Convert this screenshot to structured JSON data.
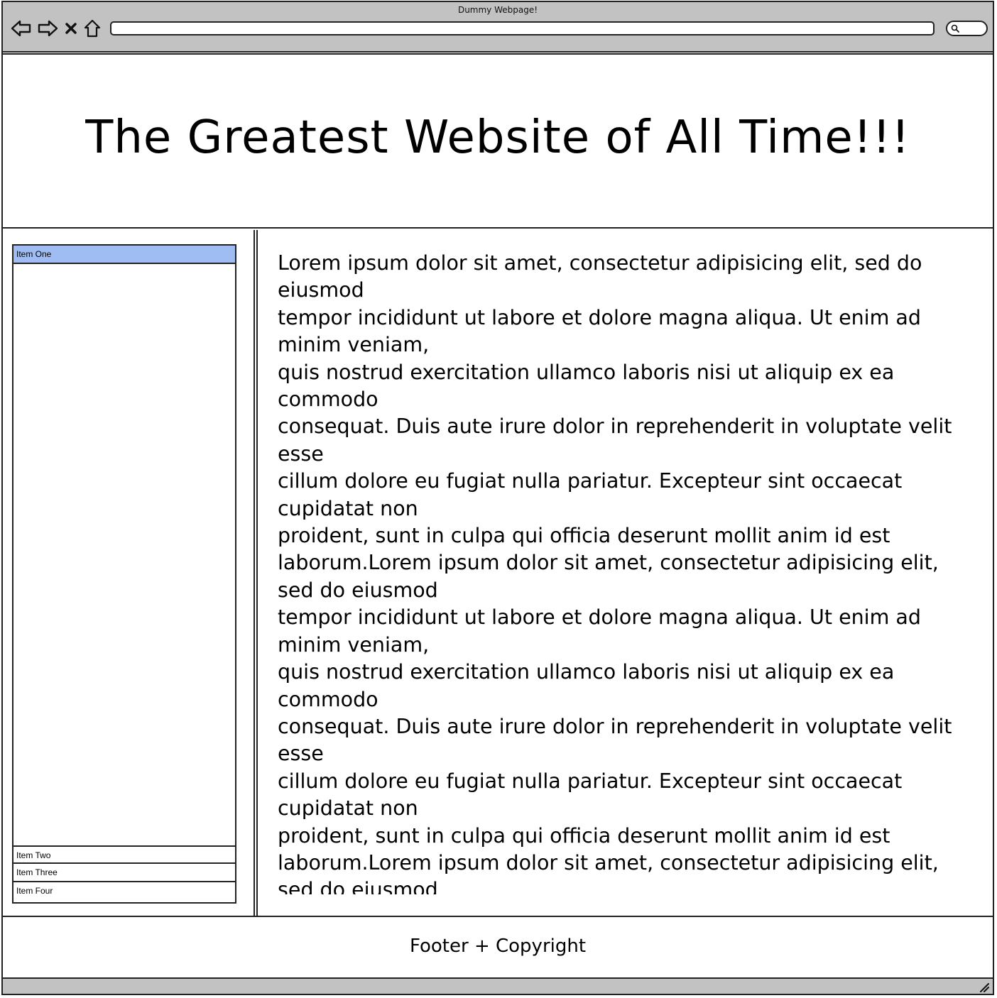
{
  "window": {
    "title": "Dummy Webpage!"
  },
  "browser": {
    "back_icon": "back-arrow-icon",
    "forward_icon": "forward-arrow-icon",
    "stop_icon": "close-icon",
    "home_icon": "home-icon",
    "address_value": "",
    "search_value": "",
    "search_icon": "search-icon"
  },
  "header": {
    "title": "The Greatest Website of All Time!!!"
  },
  "sidebar": {
    "items": [
      {
        "label": "Item One",
        "active": true
      },
      {
        "label": "Item Two",
        "active": false
      },
      {
        "label": "Item Three",
        "active": false
      },
      {
        "label": "Item Four",
        "active": false
      }
    ]
  },
  "main": {
    "body_text": "Lorem ipsum dolor sit amet, consectetur adipisicing elit, sed do eiusmod\ntempor incididunt ut labore et dolore magna aliqua. Ut enim ad minim veniam,\nquis nostrud exercitation ullamco laboris nisi ut aliquip ex ea commodo\nconsequat. Duis aute irure dolor in reprehenderit in voluptate velit esse\ncillum dolore eu fugiat nulla pariatur. Excepteur sint occaecat cupidatat non\nproident, sunt in culpa qui officia deserunt mollit anim id est laborum.Lorem ipsum dolor sit amet, consectetur adipisicing elit, sed do eiusmod\ntempor incididunt ut labore et dolore magna aliqua. Ut enim ad minim veniam,\nquis nostrud exercitation ullamco laboris nisi ut aliquip ex ea commodo\nconsequat. Duis aute irure dolor in reprehenderit in voluptate velit esse\ncillum dolore eu fugiat nulla pariatur. Excepteur sint occaecat cupidatat non\nproident, sunt in culpa qui officia deserunt mollit anim id est laborum.Lorem ipsum dolor sit amet, consectetur adipisicing elit, sed do eiusmod"
  },
  "footer": {
    "text": "Footer + Copyright"
  },
  "colors": {
    "chrome": "#c2c2c2",
    "selected_item": "#9fbdf2",
    "border": "#222222"
  }
}
